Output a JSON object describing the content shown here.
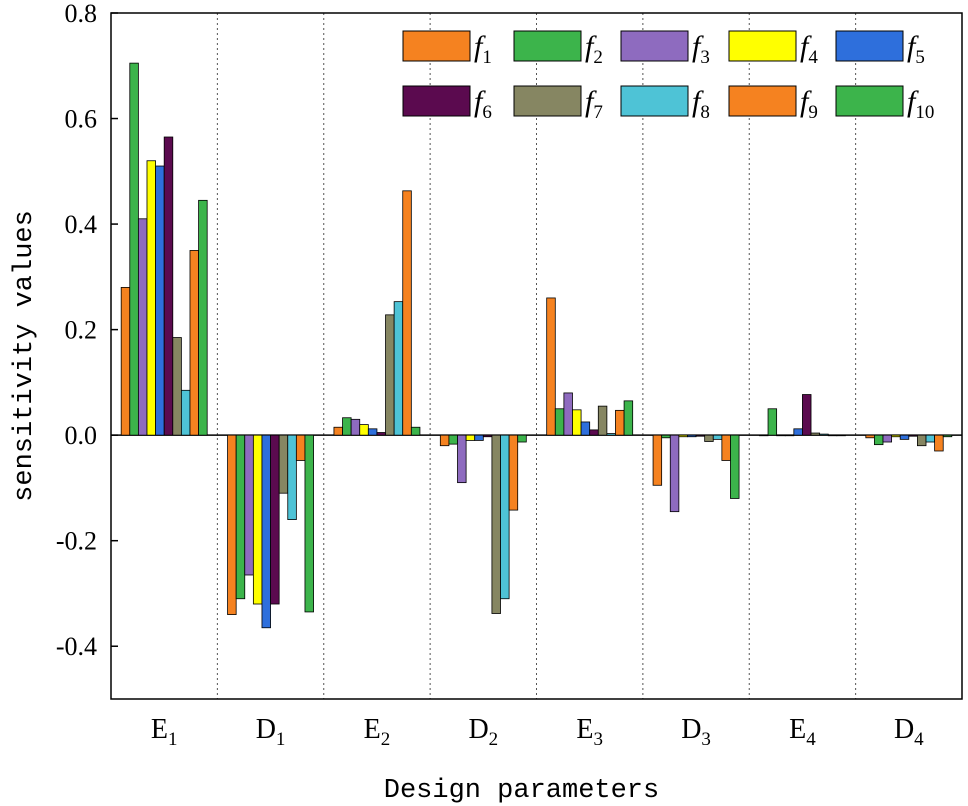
{
  "chart_data": {
    "type": "bar",
    "title": "",
    "xlabel": "Design parameters",
    "ylabel": "sensitivity values",
    "ylim": [
      -0.5,
      0.8
    ],
    "yticks": [
      "0.8",
      "0.6",
      "0.4",
      "0.2",
      "0.0",
      "-0.2",
      "-0.4"
    ],
    "ytick_values": [
      0.8,
      0.6,
      0.4,
      0.2,
      0.0,
      -0.2,
      -0.4
    ],
    "categories": [
      {
        "main": "E",
        "sub": "1"
      },
      {
        "main": "D",
        "sub": "1"
      },
      {
        "main": "E",
        "sub": "2"
      },
      {
        "main": "D",
        "sub": "2"
      },
      {
        "main": "E",
        "sub": "3"
      },
      {
        "main": "D",
        "sub": "3"
      },
      {
        "main": "E",
        "sub": "4"
      },
      {
        "main": "D",
        "sub": "4"
      }
    ],
    "legend_position": "top-right",
    "series": [
      {
        "name": "f",
        "sub": "1",
        "color": "#f58220",
        "values": [
          0.28,
          -0.34,
          0.015,
          -0.02,
          0.26,
          -0.095,
          0.0,
          -0.005
        ]
      },
      {
        "name": "f",
        "sub": "2",
        "color": "#3cb44b",
        "values": [
          0.705,
          -0.31,
          0.033,
          -0.017,
          0.05,
          -0.005,
          0.05,
          -0.018
        ]
      },
      {
        "name": "f",
        "sub": "3",
        "color": "#8e6bbf",
        "values": [
          0.41,
          -0.265,
          0.03,
          -0.09,
          0.08,
          -0.145,
          0.0,
          -0.013
        ]
      },
      {
        "name": "f",
        "sub": "4",
        "color": "#ffff00",
        "values": [
          0.52,
          -0.32,
          0.02,
          -0.01,
          0.048,
          -0.003,
          0.0,
          -0.003
        ]
      },
      {
        "name": "f",
        "sub": "5",
        "color": "#2e6fdc",
        "values": [
          0.51,
          -0.365,
          0.012,
          -0.01,
          0.025,
          -0.003,
          0.012,
          -0.008
        ]
      },
      {
        "name": "f",
        "sub": "6",
        "color": "#5b0a4f",
        "values": [
          0.565,
          -0.32,
          0.005,
          -0.003,
          0.01,
          -0.002,
          0.077,
          -0.002
        ]
      },
      {
        "name": "f",
        "sub": "7",
        "color": "#868662",
        "values": [
          0.185,
          -0.11,
          0.228,
          -0.338,
          0.055,
          -0.012,
          0.004,
          -0.02
        ]
      },
      {
        "name": "f",
        "sub": "8",
        "color": "#4ec3d6",
        "values": [
          0.085,
          -0.16,
          0.253,
          -0.31,
          0.003,
          -0.008,
          0.002,
          -0.013
        ]
      },
      {
        "name": "f",
        "sub": "9",
        "color": "#f58220",
        "values": [
          0.35,
          -0.048,
          0.463,
          -0.142,
          0.047,
          -0.048,
          0.0,
          -0.03
        ]
      },
      {
        "name": "f",
        "sub": "10",
        "color": "#3cb44b",
        "values": [
          0.445,
          -0.335,
          0.015,
          -0.013,
          0.065,
          -0.12,
          0.0,
          -0.003
        ]
      }
    ]
  }
}
